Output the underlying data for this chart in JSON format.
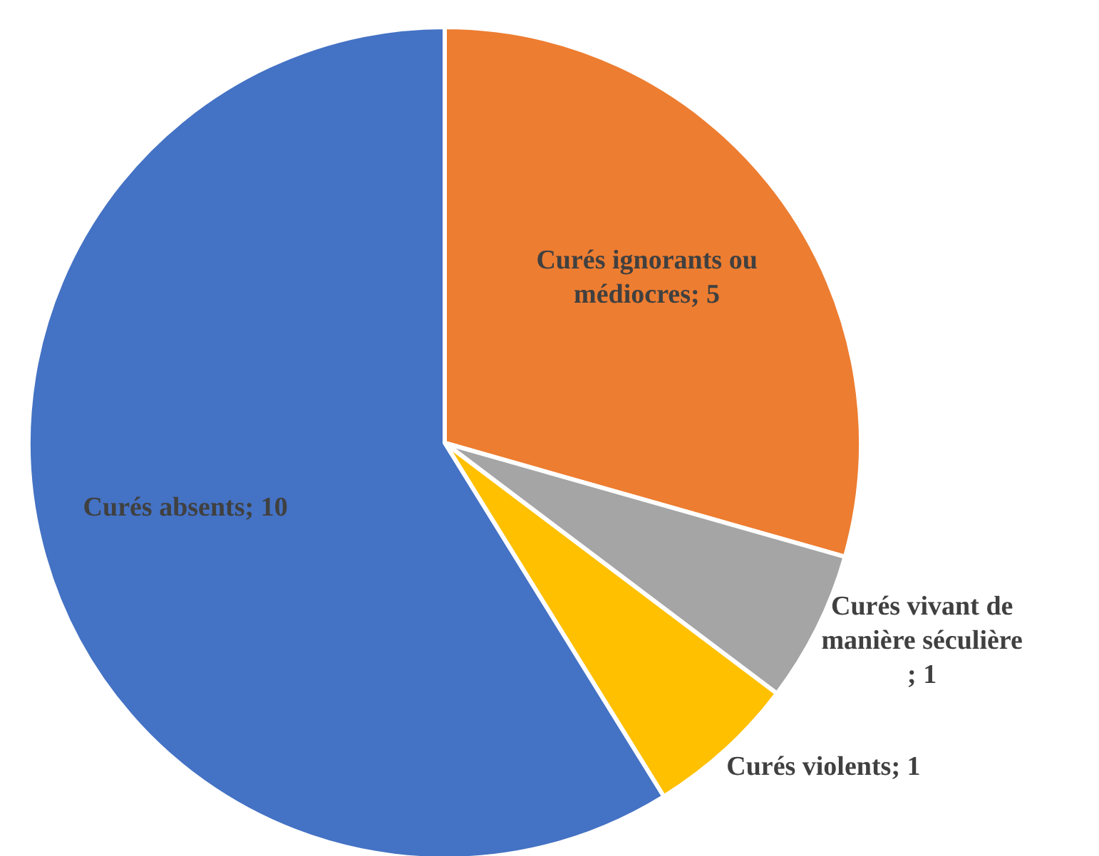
{
  "chart_data": {
    "type": "pie",
    "categories": [
      "Curés ignorants ou médiocres",
      "Curés vivant de manière séculière",
      "Curés violents",
      "Curés absents"
    ],
    "values": [
      5,
      1,
      1,
      10
    ],
    "value_labels": [
      "; 5",
      "; 1",
      "; 1",
      "; 10"
    ],
    "colors": [
      "#ed7d31",
      "#a5a5a5",
      "#ffc000",
      "#4472c4"
    ],
    "legend": false
  }
}
